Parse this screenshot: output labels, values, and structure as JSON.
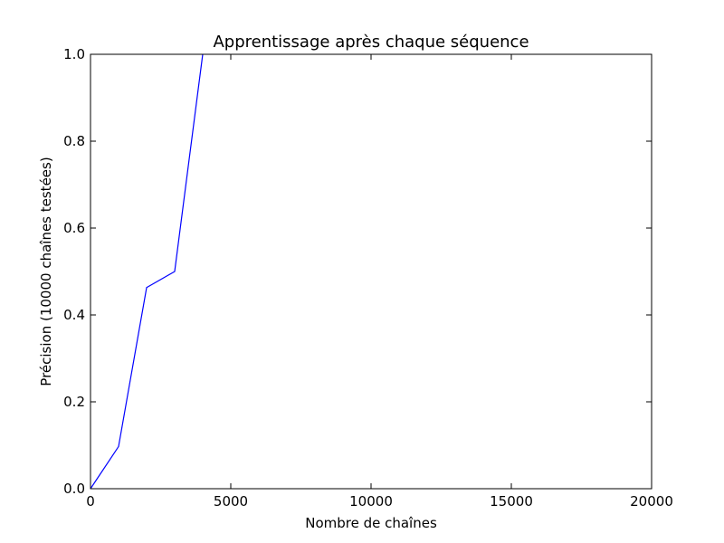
{
  "chart_data": {
    "type": "line",
    "title": "Apprentissage après chaque séquence",
    "xlabel": "Nombre de chaînes",
    "ylabel": "Précision (10000 chaînes testées)",
    "xlim": [
      0,
      20000
    ],
    "ylim": [
      0,
      1.0
    ],
    "xticks": [
      0,
      5000,
      10000,
      15000,
      20000
    ],
    "yticks": [
      0.0,
      0.2,
      0.4,
      0.6,
      0.8,
      1.0
    ],
    "xtick_labels": [
      "0",
      "5000",
      "10000",
      "15000",
      "20000"
    ],
    "ytick_labels": [
      "0.0",
      "0.2",
      "0.4",
      "0.6",
      "0.8",
      "1.0"
    ],
    "grid": false,
    "series": [
      {
        "color": "#0000ff",
        "x": [
          0,
          1000,
          2000,
          3000,
          4000
        ],
        "y": [
          0.0,
          0.097,
          0.463,
          0.5,
          1.0
        ]
      }
    ]
  }
}
